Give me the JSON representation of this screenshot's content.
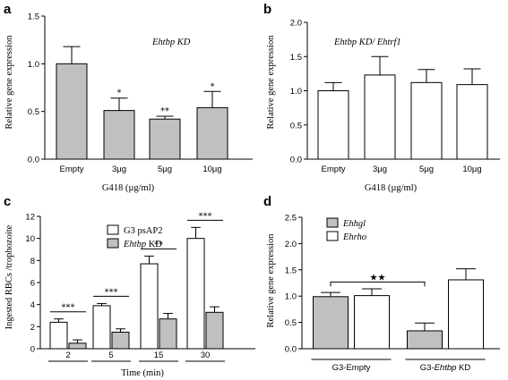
{
  "chart_data": [
    {
      "panel": "a",
      "type": "bar",
      "annotation": "Ehtbp KD",
      "xlabel": "G418 (µg/ml)",
      "ylabel": "Relative gene expression",
      "categories": [
        "Empty",
        "3µg",
        "5µg",
        "10µg"
      ],
      "values": [
        1.0,
        0.51,
        0.42,
        0.54
      ],
      "errors": [
        0.18,
        0.13,
        0.03,
        0.17
      ],
      "significance": [
        "",
        "*",
        "**",
        "*"
      ],
      "ylim": [
        0,
        1.5
      ],
      "yticks": [
        "0.0",
        "0.5",
        "1.0",
        "1.5"
      ],
      "bar_color": "#c0c0c0"
    },
    {
      "panel": "b",
      "type": "bar",
      "annotation": "Ehtbp KD/ Ehtrf1",
      "xlabel": "G418 (µg/ml)",
      "ylabel": "Relative gene expression",
      "categories": [
        "Empty",
        "3µg",
        "5µg",
        "10µg"
      ],
      "values": [
        1.0,
        1.23,
        1.12,
        1.09
      ],
      "errors": [
        0.12,
        0.27,
        0.19,
        0.23
      ],
      "ylim": [
        0,
        2.0
      ],
      "yticks": [
        "0.0",
        "0.5",
        "1.0",
        "1.5",
        "2.0"
      ],
      "bar_color": "#ffffff"
    },
    {
      "panel": "c",
      "type": "bar",
      "xlabel": "Time (min)",
      "ylabel": "Ingested RBCs /trophozoite",
      "categories": [
        "2",
        "5",
        "15",
        "30"
      ],
      "series": [
        {
          "name": "G3 psAP2",
          "values": [
            2.4,
            3.9,
            7.7,
            10.0
          ],
          "errors": [
            0.3,
            0.2,
            0.7,
            1.0
          ],
          "color": "#ffffff"
        },
        {
          "name": "Ehtbp KD",
          "values": [
            0.5,
            1.5,
            2.7,
            3.3
          ],
          "errors": [
            0.3,
            0.3,
            0.5,
            0.5
          ],
          "color": "#c0c0c0"
        }
      ],
      "significance": [
        "***",
        "***",
        "**",
        "***"
      ],
      "ylim": [
        0,
        12
      ],
      "yticks": [
        "0",
        "2",
        "4",
        "6",
        "8",
        "10",
        "12"
      ]
    },
    {
      "panel": "d",
      "type": "bar",
      "ylabel": "Relative gene expression",
      "categories": [
        "G3-Empty",
        "G3-Ehtbp KD"
      ],
      "series": [
        {
          "name": "Ehhgl",
          "values": [
            0.99,
            0.34
          ],
          "errors": [
            0.08,
            0.15
          ],
          "color": "#c0c0c0"
        },
        {
          "name": "Ehrho",
          "values": [
            1.01,
            1.31
          ],
          "errors": [
            0.13,
            0.21
          ],
          "color": "#ffffff"
        }
      ],
      "significance": "★★",
      "ylim": [
        0,
        2.5
      ],
      "yticks": [
        "0.0",
        "0.5",
        "1.0",
        "1.5",
        "2.0",
        "2.5"
      ]
    }
  ],
  "panel_letters": [
    "a",
    "b",
    "c",
    "d"
  ],
  "axis_labels": {
    "a_x": "G418 (µg/ml)",
    "a_y": "Relative gene expression",
    "b_x": "G418 (µg/ml)",
    "b_y": "Relative gene expression",
    "c_x": "Time (min)",
    "c_y": "Ingested RBCs /trophozoite",
    "d_y": "Relative gene expression"
  },
  "annotations": {
    "a": "Ehtbp KD",
    "b": "Ehtbp KD/ Ehtrf1"
  },
  "legend_c": [
    "G3 psAP2",
    "Ehtbp KD"
  ],
  "legend_d": [
    "Ehhgl",
    "Ehrho"
  ],
  "d_categories": {
    "empty": "G3-Empty",
    "kd_prefix": "G3-",
    "kd_italic": "Ehtbp",
    "kd_suffix": " KD"
  }
}
